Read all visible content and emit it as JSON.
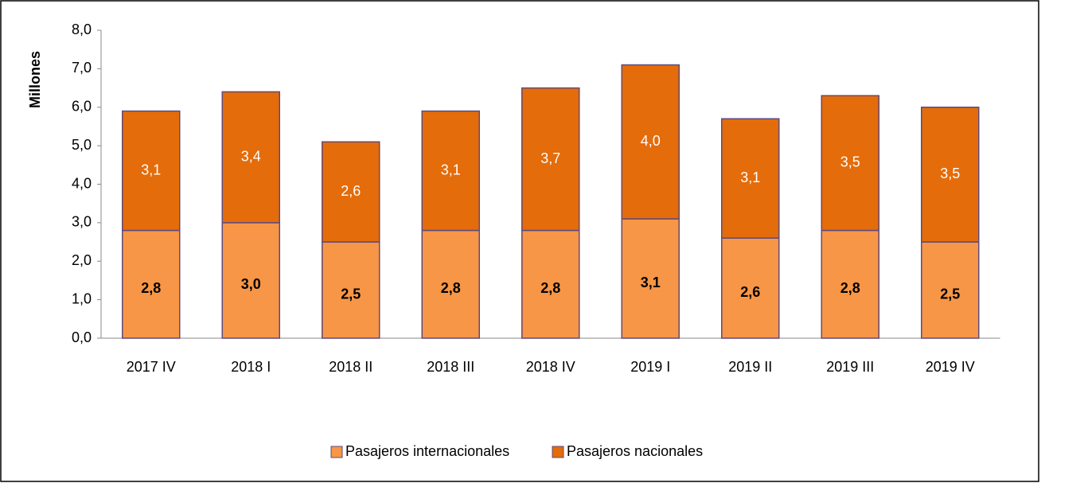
{
  "chart_data": {
    "type": "stacked_bar",
    "y_axis_label": "Millones",
    "categories": [
      "2017 IV",
      "2018 I",
      "2018 II",
      "2018 III",
      "2018 IV",
      "2019 I",
      "2019 II",
      "2019 III",
      "2019 IV"
    ],
    "series": [
      {
        "name": "Pasajeros internacionales",
        "color": "#f79646",
        "values": [
          2.8,
          3.0,
          2.5,
          2.8,
          2.8,
          3.1,
          2.6,
          2.8,
          2.5
        ],
        "value_labels": [
          "2,8",
          "3,0",
          "2,5",
          "2,8",
          "2,8",
          "3,1",
          "2,6",
          "2,8",
          "2,5"
        ]
      },
      {
        "name": "Pasajeros nacionales",
        "color": "#e46c0a",
        "values": [
          3.1,
          3.4,
          2.6,
          3.1,
          3.7,
          4.0,
          3.1,
          3.5,
          3.5
        ],
        "value_labels": [
          "3,1",
          "3,4",
          "2,6",
          "3,1",
          "3,7",
          "4,0",
          "3,1",
          "3,5",
          "3,5"
        ]
      }
    ],
    "ylim": [
      0,
      8
    ],
    "yticks": [
      {
        "value": 0,
        "label": "0,0"
      },
      {
        "value": 1,
        "label": "1,0"
      },
      {
        "value": 2,
        "label": "2,0"
      },
      {
        "value": 3,
        "label": "3,0"
      },
      {
        "value": 4,
        "label": "4,0"
      },
      {
        "value": 5,
        "label": "5,0"
      },
      {
        "value": 6,
        "label": "6,0"
      },
      {
        "value": 7,
        "label": "7,0"
      },
      {
        "value": 8,
        "label": "8,0"
      }
    ],
    "legend": "bottom"
  }
}
